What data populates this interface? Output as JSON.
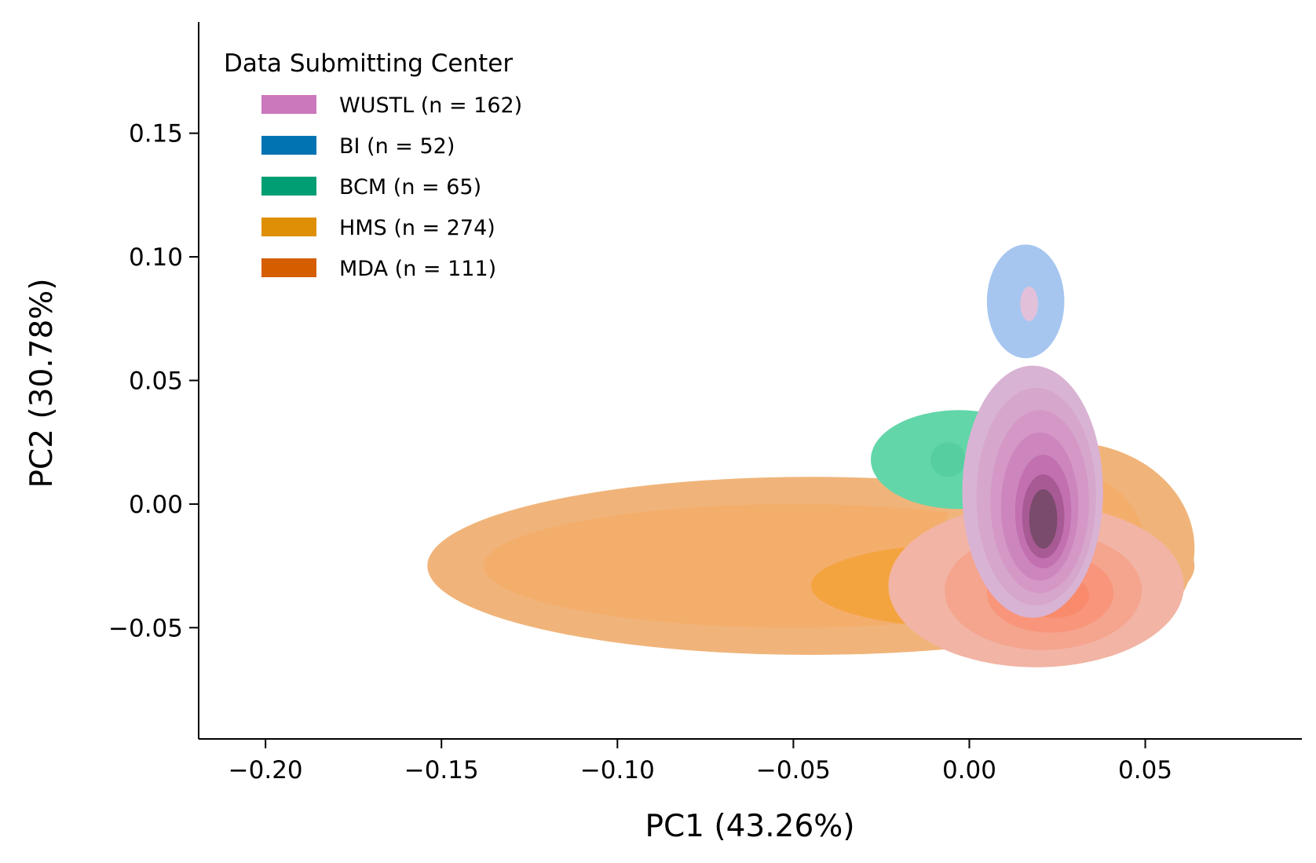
{
  "chart_data": {
    "type": "kde-contour",
    "xlabel": "PC1 (43.26%)",
    "ylabel": "PC2 (30.78%)",
    "xlim": [
      -0.219,
      0.0945
    ],
    "ylim": [
      -0.095,
      0.195
    ],
    "x_ticks": [
      {
        "value": -0.2,
        "label": "−0.20"
      },
      {
        "value": -0.15,
        "label": "−0.15"
      },
      {
        "value": -0.1,
        "label": "−0.10"
      },
      {
        "value": -0.05,
        "label": "−0.05"
      },
      {
        "value": 0.0,
        "label": "0.00"
      },
      {
        "value": 0.05,
        "label": "0.05"
      }
    ],
    "y_ticks": [
      {
        "value": -0.05,
        "label": "−0.05"
      },
      {
        "value": 0.0,
        "label": "0.00"
      },
      {
        "value": 0.05,
        "label": "0.05"
      },
      {
        "value": 0.1,
        "label": "0.10"
      },
      {
        "value": 0.15,
        "label": "0.15"
      }
    ],
    "grid": false,
    "legend": {
      "title": "Data Submitting Center",
      "placement": "top-left",
      "entries": [
        {
          "label": "WUSTL (n = 162)",
          "color": "#cc78bc"
        },
        {
          "label": "BI (n = 52)",
          "color": "#0173b2"
        },
        {
          "label": "BCM (n = 65)",
          "color": "#029e73"
        },
        {
          "label": "HMS (n = 274)",
          "color": "#de8f05"
        },
        {
          "label": "MDA (n = 111)",
          "color": "#d55e00"
        }
      ]
    },
    "series": [
      {
        "name": "HMS (n = 274)",
        "levels": [
          {
            "color": "#f0b47a",
            "cx": -0.045,
            "cy": -0.025,
            "rx": 0.109,
            "ry": 0.036
          },
          {
            "color": "#f4ae6c",
            "cx": -0.05,
            "cy": -0.025,
            "rx": 0.088,
            "ry": 0.025
          },
          {
            "color": "#f4a43f",
            "cx": 0.0,
            "cy": -0.033,
            "rx": 0.045,
            "ry": 0.017
          }
        ]
      },
      {
        "name": "HMS (n = 274)",
        "levels": [
          {
            "color": "#f0b47a",
            "cx": 0.028,
            "cy": -0.018,
            "rx": 0.036,
            "ry": 0.043
          },
          {
            "color": "#f4ae6c",
            "cx": 0.026,
            "cy": -0.018,
            "rx": 0.024,
            "ry": 0.032
          }
        ]
      },
      {
        "name": "BCM (n = 65)",
        "levels": [
          {
            "color": "#63d6a9",
            "cx": -0.003,
            "cy": 0.018,
            "rx": 0.025,
            "ry": 0.02
          },
          {
            "color": "#56cea0",
            "cx": -0.006,
            "cy": 0.018,
            "rx": 0.005,
            "ry": 0.007
          }
        ]
      },
      {
        "name": "MDA (n = 111)",
        "levels": [
          {
            "color": "#f2b4a4",
            "cx": 0.019,
            "cy": -0.033,
            "rx": 0.042,
            "ry": 0.033
          },
          {
            "color": "#f5a48e",
            "cx": 0.021,
            "cy": -0.035,
            "rx": 0.028,
            "ry": 0.024
          },
          {
            "color": "#f8957a",
            "cx": 0.023,
            "cy": -0.036,
            "rx": 0.018,
            "ry": 0.016
          },
          {
            "color": "#f98a6b",
            "cx": 0.024,
            "cy": -0.037,
            "rx": 0.01,
            "ry": 0.009
          }
        ]
      },
      {
        "name": "WUSTL (n = 162)",
        "levels": [
          {
            "color": "#d9b3d3",
            "cx": 0.018,
            "cy": 0.005,
            "rx": 0.02,
            "ry": 0.051
          },
          {
            "color": "#d6a6cd",
            "cx": 0.019,
            "cy": 0.003,
            "rx": 0.017,
            "ry": 0.044
          },
          {
            "color": "#d497c6",
            "cx": 0.02,
            "cy": 0.001,
            "rx": 0.014,
            "ry": 0.037
          },
          {
            "color": "#cd86bd",
            "cx": 0.02,
            "cy": -0.001,
            "rx": 0.011,
            "ry": 0.03
          },
          {
            "color": "#c270b0",
            "cx": 0.021,
            "cy": -0.003,
            "rx": 0.008,
            "ry": 0.023
          },
          {
            "color": "#a85a95",
            "cx": 0.021,
            "cy": -0.005,
            "rx": 0.006,
            "ry": 0.017
          },
          {
            "color": "#7a4b6c",
            "cx": 0.021,
            "cy": -0.006,
            "rx": 0.004,
            "ry": 0.012
          }
        ]
      },
      {
        "name": "BI (n = 52)",
        "levels": [
          {
            "color": "#a6c6f0",
            "cx": 0.016,
            "cy": 0.082,
            "rx": 0.011,
            "ry": 0.023
          }
        ]
      },
      {
        "name": "WUSTL (n = 162)",
        "levels": [
          {
            "color": "#e3c0d9",
            "cx": 0.017,
            "cy": 0.081,
            "rx": 0.0025,
            "ry": 0.007
          }
        ]
      }
    ]
  }
}
